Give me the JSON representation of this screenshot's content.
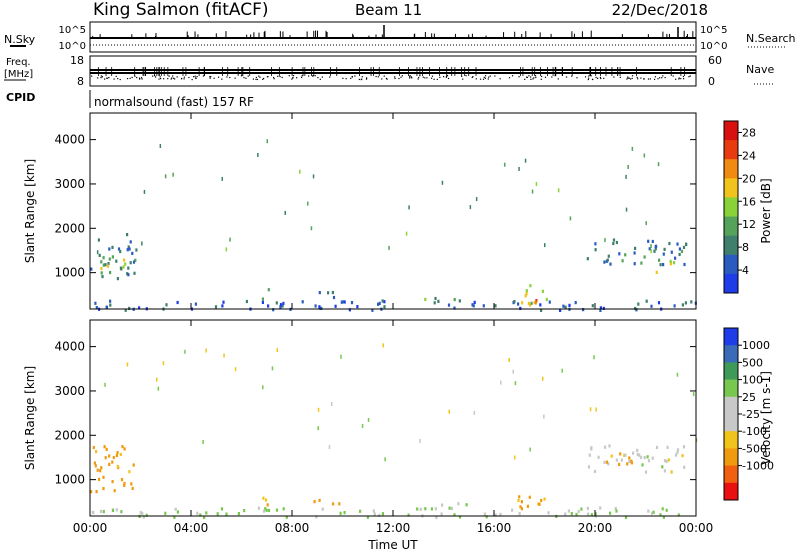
{
  "header": {
    "site": "King Salmon (fitACF)",
    "beam": "Beam 11",
    "date": "22/Dec/2018"
  },
  "top_panels": {
    "nsky_label": "N.Sky",
    "nsearch_label": "N.Search",
    "nsky_ticks": [
      "10^5",
      "10^0"
    ],
    "nsearch_ticks": [
      "10^5",
      "10^0"
    ],
    "freq_label": "Freq.",
    "freq_unit": "[MHz]",
    "freq_ticks": [
      "18",
      "8"
    ],
    "nave_label": "Nave",
    "nave_ticks": [
      "60",
      "0"
    ],
    "cpid_label": "CPID",
    "cpid_value": "normalsound (fast) 157 RF"
  },
  "colors": {
    "power_scale": [
      "#1e3ce8",
      "#2a5cc0",
      "#3f7f6c",
      "#55a35a",
      "#8ad23a",
      "#f0c41c",
      "#f08a10",
      "#e83c10",
      "#d81010"
    ],
    "velocity_scale": [
      "#e81010",
      "#f06010",
      "#f09a10",
      "#f0c41c",
      "#c8c8c8",
      "#c8c8c8",
      "#78c850",
      "#3f9a5a",
      "#3a6ab8",
      "#1e3ce8"
    ]
  },
  "chart_data": [
    {
      "type": "heatmap",
      "name": "power",
      "ylabel": "Slant Range [km]",
      "yticks": [
        1000,
        2000,
        3000,
        4000
      ],
      "ylim": [
        180,
        4600
      ],
      "xlim": [
        0,
        24
      ],
      "xticks": [
        "00:00",
        "04:00",
        "08:00",
        "12:00",
        "16:00",
        "20:00",
        "00:00"
      ],
      "colorbar": {
        "label": "Power [dB]",
        "ticks": [
          "4",
          "8",
          "12",
          "16",
          "20",
          "24",
          "28"
        ],
        "range": [
          0,
          30
        ]
      },
      "regions": [
        {
          "t": [
            0.0,
            1.8
          ],
          "r": [
            800,
            1900
          ],
          "v": 8
        },
        {
          "t": [
            0.4,
            1.5
          ],
          "r": [
            1000,
            1400
          ],
          "v": 15
        },
        {
          "t": [
            6.8,
            7.2
          ],
          "r": [
            350,
            700
          ],
          "v": 12
        },
        {
          "t": [
            8.8,
            10.0
          ],
          "r": [
            450,
            650
          ],
          "v": 6
        },
        {
          "t": [
            13.0,
            15.0
          ],
          "r": [
            350,
            500
          ],
          "v": 10
        },
        {
          "t": [
            16.9,
            18.3
          ],
          "r": [
            300,
            750
          ],
          "v": 16
        },
        {
          "t": [
            17.2,
            17.8
          ],
          "r": [
            300,
            500
          ],
          "v": 24
        },
        {
          "t": [
            19.5,
            23.6
          ],
          "r": [
            1200,
            1800
          ],
          "v": 7
        },
        {
          "t": [
            22.4,
            23.1
          ],
          "r": [
            1000,
            1400
          ],
          "v": 14
        },
        {
          "t": [
            0.0,
            24.0
          ],
          "r": [
            180,
            400
          ],
          "v": 5
        }
      ]
    },
    {
      "type": "heatmap",
      "name": "velocity",
      "ylabel": "Slant Range [km]",
      "yticks": [
        1000,
        2000,
        3000,
        4000
      ],
      "ylim": [
        180,
        4600
      ],
      "xlim": [
        0,
        24
      ],
      "xticks": [
        "00:00",
        "04:00",
        "08:00",
        "12:00",
        "16:00",
        "20:00",
        "00:00"
      ],
      "xlabel": "Time UT",
      "colorbar": {
        "label": "Velocity [m s-1]",
        "ticks": [
          "1000",
          "500",
          "100",
          "25",
          "-25",
          "-100",
          "-500",
          "-1000"
        ],
        "range": [
          -1000,
          1000
        ]
      },
      "regions": [
        {
          "t": [
            0.0,
            1.8
          ],
          "r": [
            750,
            1900
          ],
          "v": -120
        },
        {
          "t": [
            6.8,
            7.3
          ],
          "r": [
            350,
            750
          ],
          "v": -120
        },
        {
          "t": [
            8.8,
            10.0
          ],
          "r": [
            450,
            650
          ],
          "v": -110
        },
        {
          "t": [
            13.0,
            15.0
          ],
          "r": [
            350,
            500
          ],
          "v": 0
        },
        {
          "t": [
            16.9,
            18.3
          ],
          "r": [
            300,
            750
          ],
          "v": -110
        },
        {
          "t": [
            19.5,
            23.6
          ],
          "r": [
            1200,
            1800
          ],
          "v": 0
        },
        {
          "t": [
            20.3,
            21.5
          ],
          "r": [
            1300,
            1650
          ],
          "v": -150
        },
        {
          "t": [
            0.0,
            24.0
          ],
          "r": [
            180,
            400
          ],
          "v": 30
        }
      ]
    }
  ]
}
